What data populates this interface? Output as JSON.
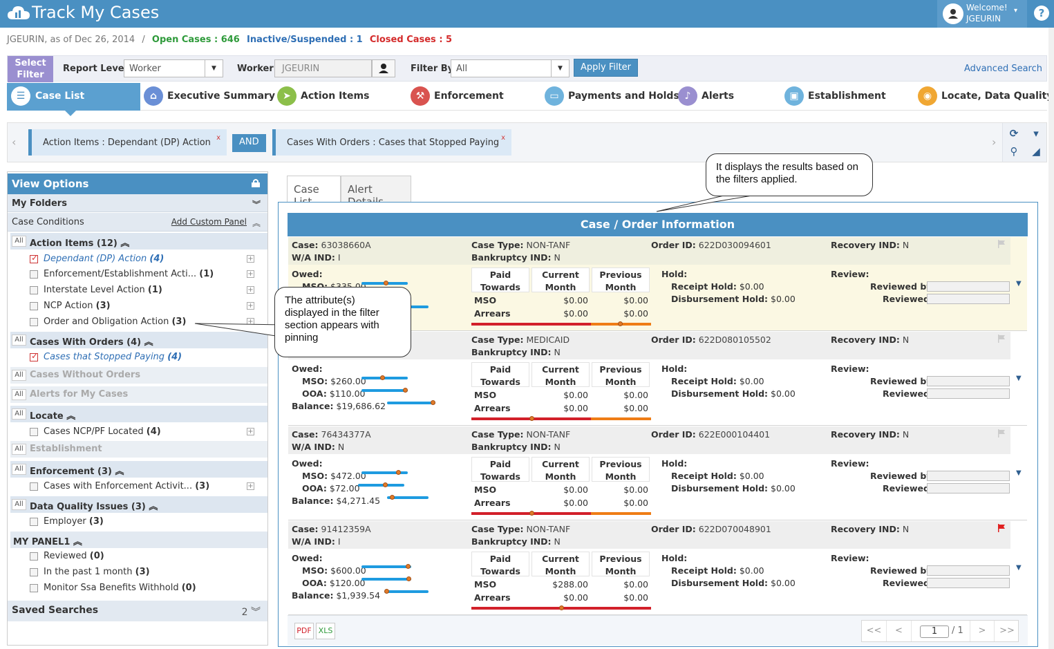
{
  "app": {
    "title": "Track My Cases"
  },
  "user": {
    "welcome": "Welcome!",
    "name": "JGEURIN"
  },
  "status": {
    "as_of": "JGEURIN, as of Dec 26, 2014",
    "sep": "/",
    "open": "Open Cases : 646",
    "inactive": "Inactive/Suspended : 1",
    "closed": "Closed Cases : 5"
  },
  "filterbar": {
    "select_filter": "Select Filter",
    "report_level_label": "Report Level",
    "report_level_value": "Worker",
    "worker_label": "Worker",
    "worker_value": "JGEURIN",
    "filter_by_label": "Filter By",
    "filter_by_value": "All",
    "apply_label": "Apply Filter",
    "advanced_search": "Advanced Search"
  },
  "nav": {
    "tabs": [
      {
        "label": "Case List",
        "icon": "list-icon",
        "color": "#4a90c2"
      },
      {
        "label": "Executive Summary",
        "icon": "home-icon",
        "color": "#6a8fd6"
      },
      {
        "label": "Action Items",
        "icon": "send-icon",
        "color": "#8cbf4a"
      },
      {
        "label": "Enforcement",
        "icon": "gavel-icon",
        "color": "#d9534f"
      },
      {
        "label": "Payments and Holds",
        "icon": "money-icon",
        "color": "#6fb3dd"
      },
      {
        "label": "Alerts",
        "icon": "bell-icon",
        "color": "#9a8fd0"
      },
      {
        "label": "Establishment",
        "icon": "briefcase-icon",
        "color": "#6fb3dd"
      },
      {
        "label": "Locate, Data Quality",
        "icon": "location-icon",
        "color": "#f0a733"
      }
    ]
  },
  "chips": {
    "chip1": "Action Items : Dependant (DP) Action",
    "and": "AND",
    "chip2": "Cases With Orders : Cases that Stopped Paying",
    "x": "x"
  },
  "left": {
    "title": "View Options",
    "my_folders": "My Folders",
    "case_conditions": "Case Conditions",
    "add_custom_panel": "Add Custom Panel",
    "all": "All",
    "groups": {
      "action_items": "Action Items (12)",
      "cases_with_orders": "Cases With Orders (4)",
      "cases_without_orders": "Cases Without Orders",
      "alerts_for_my_cases": "Alerts for My Cases",
      "locate": "Locate",
      "establishment": "Establishment",
      "enforcement": "Enforcement (3)",
      "data_quality": "Data Quality Issues (3)",
      "my_panel1": "MY PANEL1"
    },
    "items": {
      "dp_action": {
        "label": "Dependant (DP) Action",
        "count": "(4)"
      },
      "enf_est": {
        "label": "Enforcement/Establishment Acti...",
        "count": "(1)"
      },
      "interstate": {
        "label": "Interstate Level Action",
        "count": "(1)"
      },
      "ncp_action": {
        "label": "NCP Action",
        "count": "(3)"
      },
      "order_obligation": {
        "label": "Order and Obligation Action",
        "count": "(3)"
      },
      "stopped_paying": {
        "label": "Cases that Stopped Paying",
        "count": "(4)"
      },
      "ncp_located": {
        "label": "Cases NCP/PF Located",
        "count": "(4)"
      },
      "enf_activity": {
        "label": "Cases with Enforcement Activit...",
        "count": "(3)"
      },
      "employer": {
        "label": "Employer",
        "count": "(3)"
      },
      "reviewed": {
        "label": "Reviewed",
        "count": "(0)"
      },
      "past_month": {
        "label": "In the past 1 month",
        "count": "(3)"
      },
      "ssa": {
        "label": "Monitor Ssa Benefits Withhold",
        "count": "(0)"
      }
    },
    "saved_searches": "Saved Searches",
    "saved_count": "2"
  },
  "content": {
    "tab_case_list": "Case List",
    "tab_alert_details": "Alert Details",
    "header": "Case / Order Information",
    "labels": {
      "case": "Case:",
      "wa": "W/A IND:",
      "case_type": "Case Type:",
      "bankruptcy": "Bankruptcy IND:",
      "order_id": "Order ID:",
      "recovery": "Recovery IND:",
      "owed": "Owed:",
      "mso": "MSO:",
      "ooa": "OOA:",
      "balance": "Balance:",
      "paid_towards": "Paid Towards",
      "current_month": "Current Month",
      "previous_month": "Previous Month",
      "mso_row": "MSO",
      "arrears_row": "Arrears",
      "hold": "Hold:",
      "receipt_hold": "Receipt Hold:",
      "disb_hold": "Disbursement Hold:",
      "review": "Review:",
      "reviewed_by": "Reviewed by:",
      "reviewed": "Reviewed:"
    },
    "cases": [
      {
        "case": "63038660A",
        "wa": "I",
        "type": "NON-TANF",
        "bankruptcy": "N",
        "order": "622D030094601",
        "recovery": "N",
        "mso": "$335.00",
        "ooa": "",
        "balance": "",
        "mso_cur": "$0.00",
        "mso_prev": "$0.00",
        "arr_cur": "$0.00",
        "arr_prev": "$0.00",
        "receipt": "$0.00",
        "disb": "$0.00",
        "flag": "grey"
      },
      {
        "case": "",
        "wa": "",
        "type": "MEDICAID",
        "bankruptcy": "N",
        "order": "622D080105502",
        "recovery": "N",
        "mso": "$260.00",
        "ooa": "$110.00",
        "balance": "$19,686.62",
        "mso_cur": "$0.00",
        "mso_prev": "$0.00",
        "arr_cur": "$0.00",
        "arr_prev": "$0.00",
        "receipt": "$0.00",
        "disb": "$0.00",
        "flag": "grey"
      },
      {
        "case": "76434377A",
        "wa": "N",
        "type": "NON-TANF",
        "bankruptcy": "N",
        "order": "622E000104401",
        "recovery": "N",
        "mso": "$472.00",
        "ooa": "$72.00",
        "balance": "$4,271.45",
        "mso_cur": "$0.00",
        "mso_prev": "$0.00",
        "arr_cur": "$0.00",
        "arr_prev": "$0.00",
        "receipt": "$0.00",
        "disb": "$0.00",
        "flag": "grey"
      },
      {
        "case": "91412359A",
        "wa": "I",
        "type": "NON-TANF",
        "bankruptcy": "N",
        "order": "622D070048901",
        "recovery": "N",
        "mso": "$600.00",
        "ooa": "$120.00",
        "balance": "$1,939.54",
        "mso_cur": "$288.00",
        "mso_prev": "$0.00",
        "arr_cur": "$0.00",
        "arr_prev": "$0.00",
        "receipt": "$0.00",
        "disb": "$0.00",
        "flag": "red"
      }
    ],
    "pager": {
      "first": "<<",
      "prev": "<",
      "page": "1",
      "of": "/ 1",
      "next": ">",
      "last": ">>"
    }
  },
  "callouts": {
    "results": "It displays the results based on the filters applied.",
    "pinning": "The attribute(s) displayed in the filter section appears with pinning"
  }
}
